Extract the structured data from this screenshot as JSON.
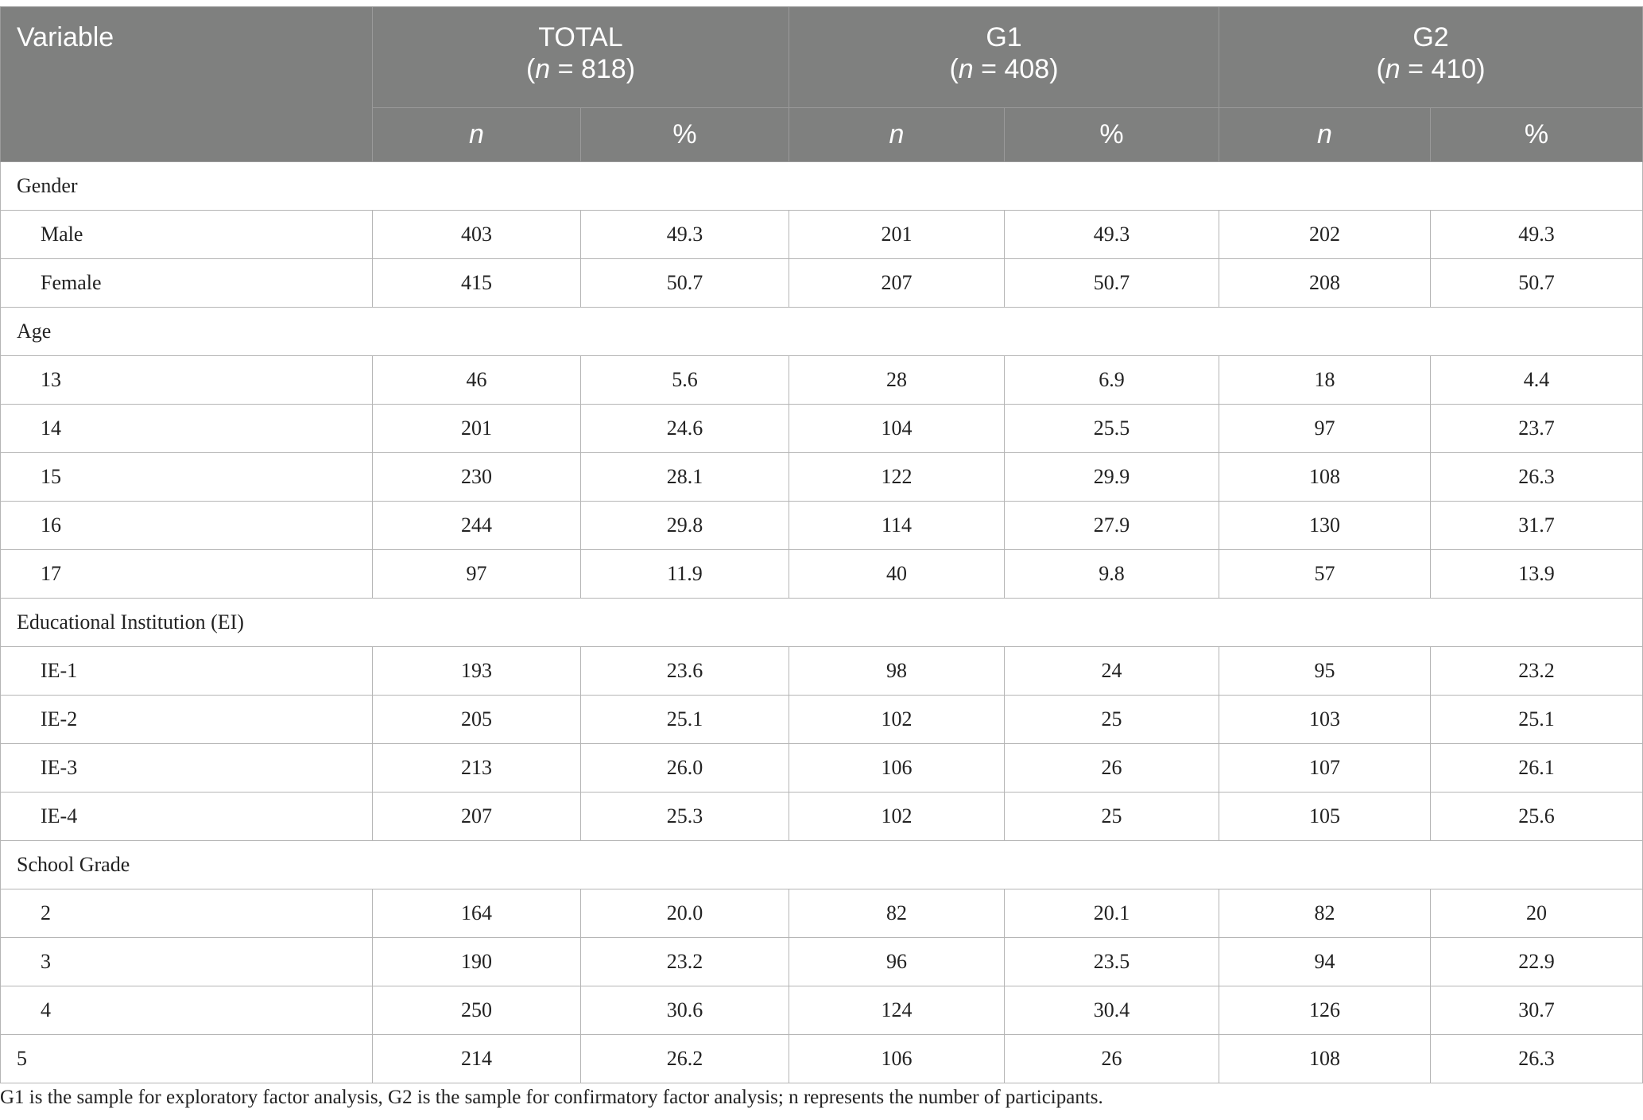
{
  "header": {
    "variable": "Variable",
    "groups": [
      {
        "name": "TOTAL",
        "n_label": "n",
        "n_value": "= 818)"
      },
      {
        "name": "G1",
        "n_label": "n",
        "n_value": "= 408)"
      },
      {
        "name": "G2",
        "n_label": "n",
        "n_value": "= 410)"
      }
    ],
    "sub": {
      "n": "n",
      "pct": "%"
    }
  },
  "sections": [
    {
      "title": "Gender",
      "rows": [
        {
          "label": "Male",
          "values": [
            "403",
            "49.3",
            "201",
            "49.3",
            "202",
            "49.3"
          ]
        },
        {
          "label": "Female",
          "values": [
            "415",
            "50.7",
            "207",
            "50.7",
            "208",
            "50.7"
          ]
        }
      ]
    },
    {
      "title": "Age",
      "rows": [
        {
          "label": "13",
          "values": [
            "46",
            "5.6",
            "28",
            "6.9",
            "18",
            "4.4"
          ]
        },
        {
          "label": "14",
          "values": [
            "201",
            "24.6",
            "104",
            "25.5",
            "97",
            "23.7"
          ]
        },
        {
          "label": "15",
          "values": [
            "230",
            "28.1",
            "122",
            "29.9",
            "108",
            "26.3"
          ]
        },
        {
          "label": "16",
          "values": [
            "244",
            "29.8",
            "114",
            "27.9",
            "130",
            "31.7"
          ]
        },
        {
          "label": "17",
          "values": [
            "97",
            "11.9",
            "40",
            "9.8",
            "57",
            "13.9"
          ]
        }
      ]
    },
    {
      "title": "Educational Institution (EI)",
      "rows": [
        {
          "label": "IE-1",
          "values": [
            "193",
            "23.6",
            "98",
            "24",
            "95",
            "23.2"
          ]
        },
        {
          "label": "IE-2",
          "values": [
            "205",
            "25.1",
            "102",
            "25",
            "103",
            "25.1"
          ]
        },
        {
          "label": "IE-3",
          "values": [
            "213",
            "26.0",
            "106",
            "26",
            "107",
            "26.1"
          ]
        },
        {
          "label": "IE-4",
          "values": [
            "207",
            "25.3",
            "102",
            "25",
            "105",
            "25.6"
          ]
        }
      ]
    },
    {
      "title": "School Grade",
      "rows": [
        {
          "label": "2",
          "values": [
            "164",
            "20.0",
            "82",
            "20.1",
            "82",
            "20"
          ]
        },
        {
          "label": "3",
          "values": [
            "190",
            "23.2",
            "96",
            "23.5",
            "94",
            "22.9"
          ]
        },
        {
          "label": "4",
          "values": [
            "250",
            "30.6",
            "124",
            "30.4",
            "126",
            "30.7"
          ]
        },
        {
          "label": "5",
          "values": [
            "214",
            "26.2",
            "106",
            "26",
            "108",
            "26.3"
          ],
          "flat": true
        }
      ]
    }
  ],
  "footnote": "G1 is the sample for exploratory factor analysis, G2 is the sample for confirmatory factor analysis; n represents the number of participants."
}
